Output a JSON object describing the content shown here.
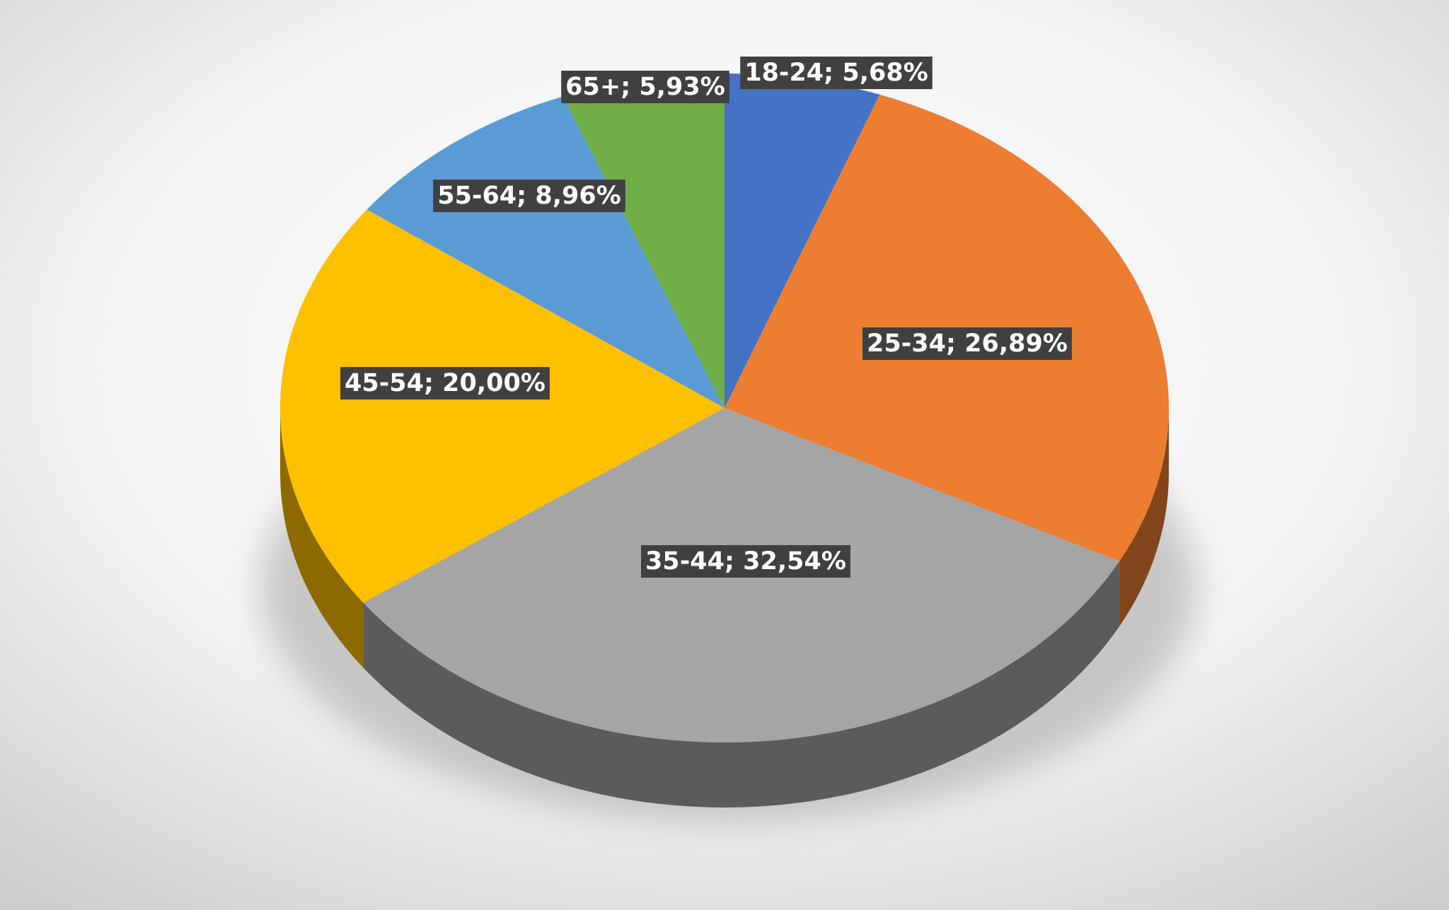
{
  "chart_data": {
    "type": "pie",
    "categories": [
      "18-24",
      "25-34",
      "35-44",
      "45-54",
      "55-64",
      "65+"
    ],
    "values": [
      5.68,
      26.89,
      32.54,
      20.0,
      8.96,
      5.93
    ],
    "value_labels": [
      "18-24; 5,68%",
      "25-34; 26,89%",
      "35-44; 32,54%",
      "45-54; 20,00%",
      "55-64; 8,96%",
      "65+; 5,93%"
    ],
    "colors": [
      "#4472c4",
      "#ed7d31",
      "#a5a5a5",
      "#ffc000",
      "#5b9bd5",
      "#70ad47"
    ]
  }
}
